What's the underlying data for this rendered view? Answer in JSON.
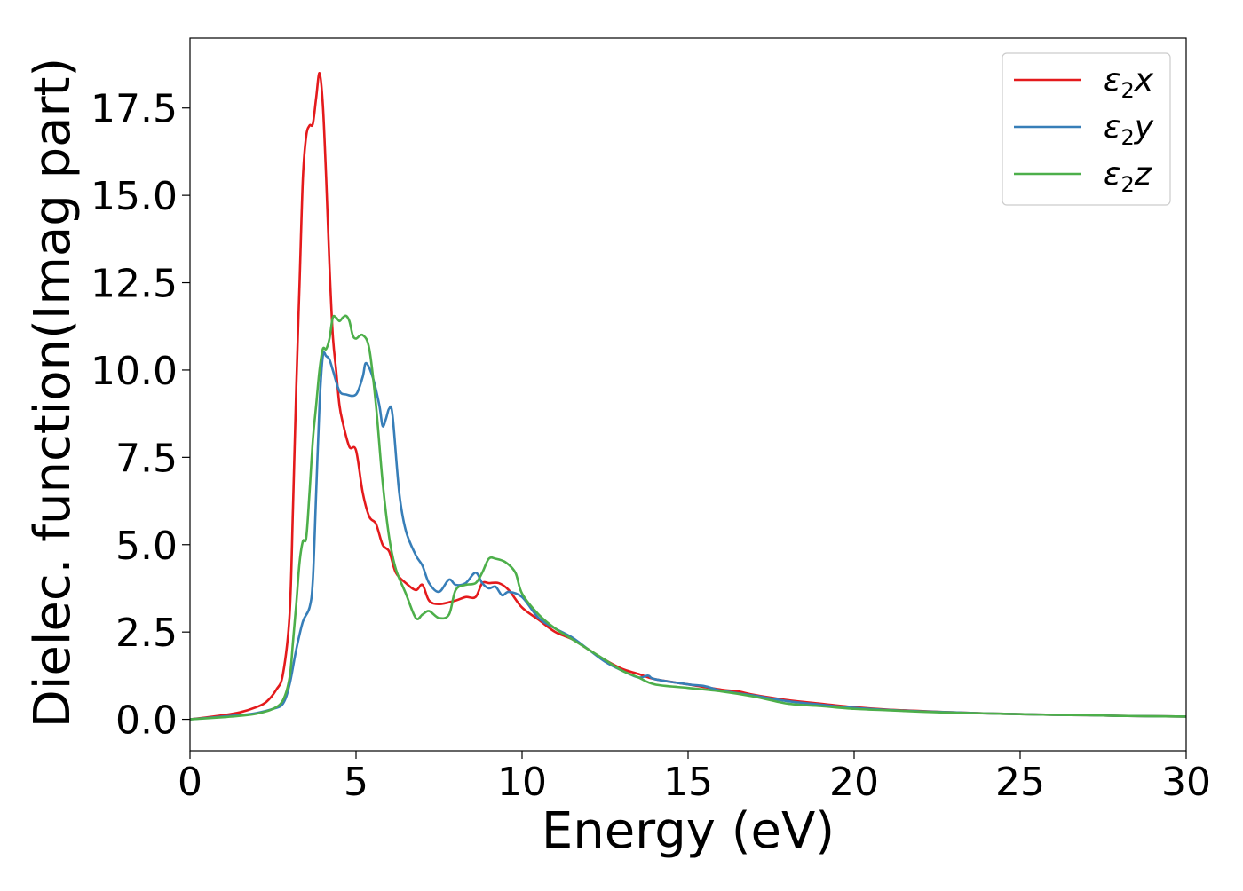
{
  "chart_data": {
    "type": "line",
    "xlabel": "Energy (eV)",
    "ylabel": "Dielec. function(Imag part)",
    "xlim": [
      0,
      30
    ],
    "ylim": [
      -0.9,
      19.5
    ],
    "xticks": [
      0,
      5,
      10,
      15,
      20,
      25,
      30
    ],
    "xtick_labels": [
      "0",
      "5",
      "10",
      "15",
      "20",
      "25",
      "30"
    ],
    "yticks": [
      0.0,
      2.5,
      5.0,
      7.5,
      10.0,
      12.5,
      15.0,
      17.5
    ],
    "ytick_labels": [
      "0.0",
      "2.5",
      "5.0",
      "7.5",
      "10.0",
      "12.5",
      "15.0",
      "17.5"
    ],
    "grid": false,
    "legend": "top-right",
    "series": [
      {
        "name": "ε2x",
        "legend": {
          "base": "ε",
          "sub": "2",
          "var": "x"
        },
        "color": "#e41a1c",
        "x": [
          0,
          1,
          1.5,
          2,
          2.3,
          2.6,
          2.8,
          3.0,
          3.1,
          3.2,
          3.3,
          3.4,
          3.5,
          3.6,
          3.7,
          3.8,
          3.9,
          4.0,
          4.1,
          4.2,
          4.3,
          4.4,
          4.5,
          4.6,
          4.8,
          5.0,
          5.2,
          5.4,
          5.6,
          5.8,
          6.0,
          6.2,
          6.5,
          6.8,
          7.0,
          7.2,
          7.5,
          8.0,
          8.3,
          8.6,
          8.8,
          9.0,
          9.3,
          9.6,
          10.0,
          10.5,
          11.0,
          11.5,
          12.0,
          12.5,
          13.0,
          13.5,
          14.0,
          15.0,
          16.0,
          16.5,
          17.0,
          18.0,
          19.0,
          20.0,
          21.0,
          22.0,
          23.0,
          24.0,
          25.0,
          26.0,
          27.0,
          28.0,
          29.0,
          30.0
        ],
        "values": [
          0.0,
          0.12,
          0.2,
          0.35,
          0.5,
          0.85,
          1.3,
          3.0,
          6.0,
          9.5,
          12.5,
          15.5,
          16.7,
          17.0,
          17.05,
          17.8,
          18.5,
          17.6,
          15.5,
          13.0,
          11.0,
          10.0,
          9.0,
          8.5,
          7.8,
          7.7,
          6.5,
          5.8,
          5.6,
          5.0,
          4.8,
          4.2,
          3.9,
          3.7,
          3.85,
          3.4,
          3.3,
          3.4,
          3.5,
          3.5,
          3.9,
          3.9,
          3.9,
          3.7,
          3.2,
          2.85,
          2.5,
          2.3,
          2.0,
          1.7,
          1.45,
          1.3,
          1.15,
          1.0,
          0.85,
          0.8,
          0.7,
          0.55,
          0.45,
          0.35,
          0.28,
          0.24,
          0.2,
          0.17,
          0.15,
          0.13,
          0.12,
          0.1,
          0.09,
          0.08
        ]
      },
      {
        "name": "ε2y",
        "legend": {
          "base": "ε",
          "sub": "2",
          "var": "y"
        },
        "color": "#377eb8",
        "x": [
          0,
          1,
          1.5,
          2,
          2.5,
          2.8,
          3.0,
          3.2,
          3.4,
          3.6,
          3.7,
          3.8,
          3.9,
          4.0,
          4.1,
          4.2,
          4.3,
          4.5,
          4.7,
          5.0,
          5.2,
          5.3,
          5.5,
          5.7,
          5.8,
          5.9,
          6.0,
          6.1,
          6.3,
          6.5,
          6.8,
          7.0,
          7.2,
          7.5,
          7.8,
          8.0,
          8.3,
          8.6,
          8.8,
          9.0,
          9.2,
          9.4,
          9.6,
          10.0,
          10.5,
          11.0,
          11.5,
          12.0,
          12.5,
          13.0,
          13.5,
          13.8,
          14.0,
          15.0,
          15.5,
          16.0,
          17.0,
          18.0,
          19.0,
          20.0,
          21.0,
          22.0,
          23.0,
          24.0,
          25.0,
          26.0,
          27.0,
          28.0,
          29.0,
          30.0
        ],
        "values": [
          0.0,
          0.08,
          0.12,
          0.18,
          0.3,
          0.45,
          1.0,
          2.0,
          2.8,
          3.2,
          4.0,
          6.5,
          9.0,
          10.4,
          10.4,
          10.3,
          10.0,
          9.4,
          9.3,
          9.3,
          9.8,
          10.2,
          9.8,
          9.0,
          8.4,
          8.6,
          8.9,
          8.7,
          6.5,
          5.4,
          4.7,
          4.4,
          3.9,
          3.65,
          4.0,
          3.85,
          3.9,
          4.2,
          3.9,
          3.75,
          3.8,
          3.55,
          3.65,
          3.5,
          2.9,
          2.6,
          2.35,
          2.0,
          1.65,
          1.4,
          1.2,
          1.25,
          1.15,
          1.0,
          0.95,
          0.82,
          0.68,
          0.52,
          0.42,
          0.33,
          0.27,
          0.23,
          0.2,
          0.17,
          0.15,
          0.13,
          0.12,
          0.1,
          0.09,
          0.08
        ]
      },
      {
        "name": "ε2z",
        "legend": {
          "base": "ε",
          "sub": "2",
          "var": "z"
        },
        "color": "#4daf4a",
        "x": [
          0,
          1,
          1.5,
          2,
          2.5,
          2.8,
          3.0,
          3.1,
          3.2,
          3.3,
          3.4,
          3.5,
          3.6,
          3.7,
          3.8,
          3.9,
          4.0,
          4.1,
          4.2,
          4.3,
          4.4,
          4.5,
          4.6,
          4.7,
          4.8,
          4.9,
          5.0,
          5.2,
          5.4,
          5.6,
          5.8,
          6.0,
          6.2,
          6.5,
          6.8,
          7.0,
          7.2,
          7.5,
          7.8,
          8.0,
          8.3,
          8.6,
          8.8,
          9.0,
          9.2,
          9.5,
          9.8,
          10.0,
          10.5,
          11.0,
          11.5,
          12.0,
          12.5,
          13.0,
          13.5,
          14.0,
          15.0,
          16.0,
          17.0,
          18.0,
          19.0,
          20.0,
          21.0,
          22.0,
          23.0,
          24.0,
          25.0,
          26.0,
          27.0,
          28.0,
          29.0,
          30.0
        ],
        "values": [
          0.0,
          0.06,
          0.1,
          0.16,
          0.3,
          0.55,
          1.2,
          2.2,
          3.3,
          4.5,
          5.1,
          5.2,
          6.5,
          8.0,
          9.0,
          10.0,
          10.6,
          10.6,
          10.9,
          11.5,
          11.5,
          11.4,
          11.5,
          11.55,
          11.4,
          11.0,
          10.9,
          11.0,
          10.6,
          9.0,
          6.8,
          5.2,
          4.3,
          3.6,
          2.9,
          3.0,
          3.1,
          2.9,
          3.0,
          3.7,
          3.85,
          3.9,
          4.2,
          4.6,
          4.6,
          4.5,
          4.2,
          3.6,
          3.0,
          2.6,
          2.3,
          2.0,
          1.7,
          1.4,
          1.2,
          1.0,
          0.9,
          0.8,
          0.65,
          0.45,
          0.38,
          0.3,
          0.26,
          0.22,
          0.19,
          0.17,
          0.15,
          0.13,
          0.12,
          0.1,
          0.09,
          0.08
        ]
      }
    ]
  }
}
